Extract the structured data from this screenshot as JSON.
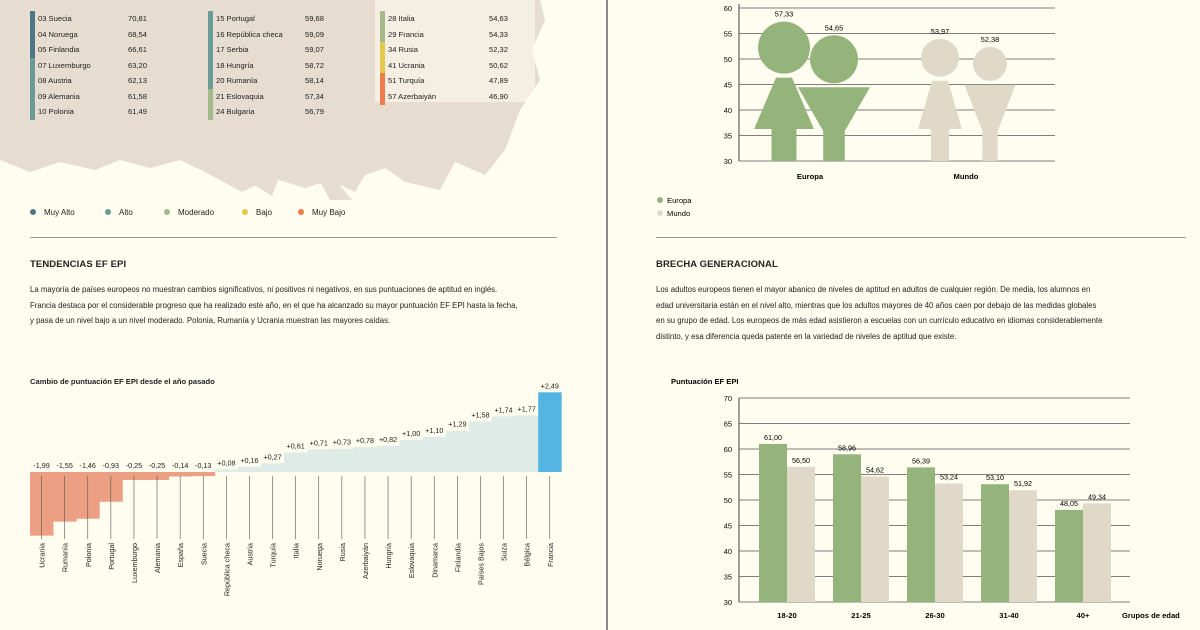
{
  "map_legend": [
    {
      "label": "Muy Alto",
      "color": "#4e7786"
    },
    {
      "label": "Alto",
      "color": "#6a9b98"
    },
    {
      "label": "Moderado",
      "color": "#a6b98a"
    },
    {
      "label": "Bajo",
      "color": "#e3c84f"
    },
    {
      "label": "Muy Bajo",
      "color": "#ee7c4d"
    }
  ],
  "rank_columns": [
    [
      {
        "label": "03 Suecia",
        "value": "70,81",
        "color": "#4e7786"
      },
      {
        "label": "04 Noruega",
        "value": "68,54",
        "color": "#4e7786"
      },
      {
        "label": "05 Finlandia",
        "value": "66,61",
        "color": "#4e7786"
      },
      {
        "label": "07 Luxemburgo",
        "value": "63,20",
        "color": "#6a9b98"
      },
      {
        "label": "08 Austria",
        "value": "62,13",
        "color": "#6a9b98"
      },
      {
        "label": "09 Alemania",
        "value": "61,58",
        "color": "#6a9b98"
      },
      {
        "label": "10 Polonia",
        "value": "61,49",
        "color": "#6a9b98"
      }
    ],
    [
      {
        "label": "15 Portugal",
        "value": "59,68",
        "color": "#6a9b98"
      },
      {
        "label": "16 República checa",
        "value": "59,09",
        "color": "#6a9b98"
      },
      {
        "label": "17 Serbia",
        "value": "59,07",
        "color": "#6a9b98"
      },
      {
        "label": "18 Hungría",
        "value": "58,72",
        "color": "#6a9b98"
      },
      {
        "label": "20 Rumanía",
        "value": "58,14",
        "color": "#6a9b98"
      },
      {
        "label": "21 Eslovaquia",
        "value": "57,34",
        "color": "#a6b98a"
      },
      {
        "label": "24 Bulgaria",
        "value": "56,79",
        "color": "#a6b98a"
      }
    ],
    [
      {
        "label": "28 Italia",
        "value": "54,63",
        "color": "#a6b98a"
      },
      {
        "label": "29 Francia",
        "value": "54,33",
        "color": "#a6b98a"
      },
      {
        "label": "34 Rusia",
        "value": "52,32",
        "color": "#e3c84f"
      },
      {
        "label": "41 Ucrania",
        "value": "50,62",
        "color": "#e3c84f"
      },
      {
        "label": "51 Turquía",
        "value": "47,89",
        "color": "#ee7c4d"
      },
      {
        "label": "57 Azerbaiyán",
        "value": "46,90",
        "color": "#ee7c4d"
      }
    ]
  ],
  "trends": {
    "title": "TENDENCIAS EF EPI",
    "para": [
      "La mayoría de países europeos no muestran cambios significativos, ni positivos ni negativos, en sus puntuaciones de aptitud en inglés.",
      "Francia destaca por el considerable progreso que ha realizado este año, en el que ha alcanzado su mayor puntuación EF EPI hasta la fecha,",
      "y pasa de un nivel bajo a un nivel moderado. Polonia, Rumanía y Ucrania muestran las mayores caídas."
    ]
  },
  "gap": {
    "title": "BRECHA GENERACIONAL",
    "para": [
      "Los adultos europeos tienen el mayor abanico de niveles de aptitud en adultos de cualquier región. De media, los alumnos en",
      "edad universitaria están en el nivel alto, mientras que los adultos mayores de 40 años caen por debajo de las medidas globales",
      "en su grupo de edad. Los europeos de más edad asistieron a escuelas con un currículo educativo en idiomas considerablemente",
      "distinto, y esa diferencia queda patente en la variedad de niveles de aptitud que existe."
    ]
  },
  "chart_data": [
    {
      "type": "bar",
      "title": "Cambio de puntuación EF EPI desde el año pasado",
      "categories": [
        "Ucrania",
        "Rumanía",
        "Polonia",
        "Portugal",
        "Luxemburgo",
        "Alemania",
        "España",
        "Suecia",
        "República checa",
        "Austria",
        "Turquía",
        "Italia",
        "Noruega",
        "Rusia",
        "Azerbaiyán",
        "Hungría",
        "Eslovaquia",
        "Dinamarca",
        "Finlandia",
        "Países Bajos",
        "Suiza",
        "Bélgica",
        "Francia"
      ],
      "values": [
        -1.99,
        -1.55,
        -1.46,
        -0.93,
        -0.25,
        -0.25,
        -0.14,
        -0.13,
        0.08,
        0.16,
        0.27,
        0.61,
        0.71,
        0.73,
        0.78,
        0.82,
        1.0,
        1.1,
        1.29,
        1.58,
        1.74,
        1.77,
        2.49
      ],
      "value_labels": [
        "-1,99",
        "-1,55",
        "-1,46",
        "-0,93",
        "-0,25",
        "-0,25",
        "-0,14",
        "-0,13",
        "+0,08",
        "+0,16",
        "+0,27",
        "+0,61",
        "+0,71",
        "+0,73",
        "+0,78",
        "+0,82",
        "+1,00",
        "+1,10",
        "+1,29",
        "+1,58",
        "+1,74",
        "+1,77",
        "+2,49"
      ],
      "colors": {
        "decline": "#ed9f83",
        "increase": "#deebe7",
        "highlight": "#54b4e4"
      }
    },
    {
      "type": "bar",
      "categories": [
        "Europa",
        "Mundo"
      ],
      "series": [
        {
          "name": "Europa",
          "values": [
            57.33,
            54.65
          ],
          "color": "#94b47c"
        },
        {
          "name": "Mundo",
          "values": [
            53.97,
            52.38
          ],
          "color": "#e1d9c8"
        }
      ],
      "value_labels": [
        [
          "57,33",
          "54,65"
        ],
        [
          "53,97",
          "52,38"
        ]
      ],
      "ylim": [
        30,
        60
      ],
      "yticks": [
        30,
        35,
        40,
        45,
        50,
        55,
        60
      ],
      "legend": [
        "Europa",
        "Mundo"
      ]
    },
    {
      "type": "bar",
      "ylabel": "Puntuación EF EPI",
      "xlabel": "Grupos de edad",
      "categories": [
        "18-20",
        "21-25",
        "26-30",
        "31-40",
        "40+"
      ],
      "series": [
        {
          "values": [
            61.0,
            58.96,
            56.39,
            53.1,
            48.05
          ],
          "color": "#94b47c"
        },
        {
          "values": [
            56.5,
            54.62,
            53.24,
            51.92,
            49.34
          ],
          "color": "#e1d9c8"
        }
      ],
      "value_labels": [
        [
          "61,00",
          "58,96",
          "56,39",
          "53,10",
          "48,05"
        ],
        [
          "56,50",
          "54,62",
          "53,24",
          "51,92",
          "49,34"
        ]
      ],
      "ylim": [
        30,
        70
      ],
      "yticks": [
        30,
        35,
        40,
        45,
        50,
        55,
        60,
        65,
        70
      ],
      "grid": true
    }
  ]
}
